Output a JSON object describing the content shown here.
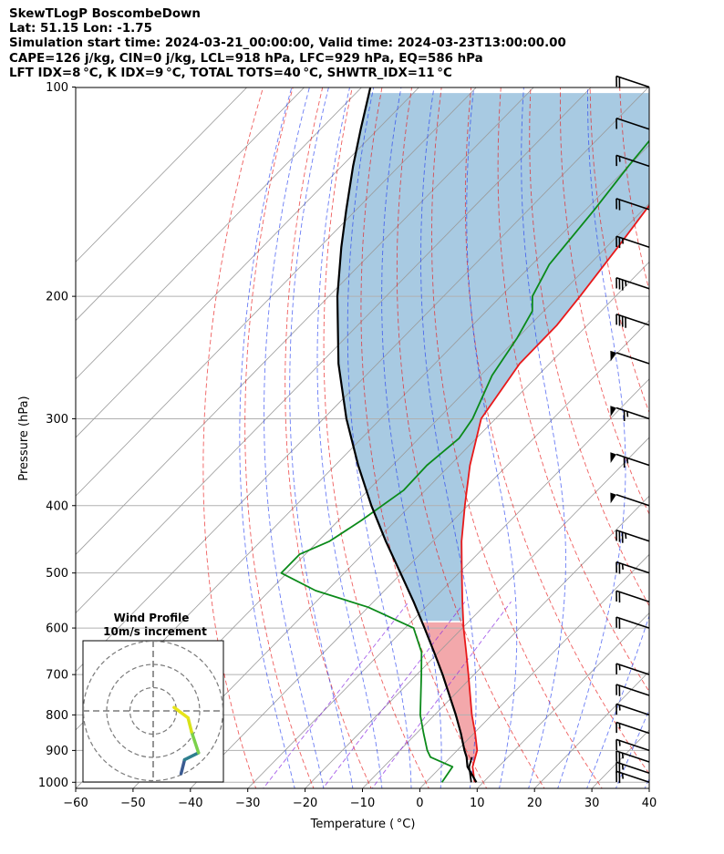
{
  "header": {
    "line1": "SkewTLogP BoscombeDown",
    "line2": "Lat: 51.15   Lon: -1.75",
    "line3": "Simulation start time: 2024-03-21_00:00:00, Valid time: 2024-03-23T13:00:00.00",
    "line4": "CAPE=126 j/kg, CIN=0 j/kg, LCL=918 hPa, LFC=929 hPa, EQ=586 hPa",
    "line5": "LFT IDX=8 °C, K IDX=9 °C, TOTAL TOTS=40 °C, SHWTR_IDX=11 °C"
  },
  "hodograph": {
    "title": "Wind Profile",
    "subtitle": "10m/s increment"
  },
  "colors": {
    "temperature": "#e8191a",
    "dewpoint": "#0b8a1a",
    "parcel": "#000000",
    "cape_fill": "#a3c7e0",
    "cin_fill": "#f2a3a6",
    "dry_adiabat": "#e8191a",
    "moist_adiabat": "#1a35f0",
    "mixing_ratio": "#8a2be2",
    "isotherm": "#9a9a9a"
  },
  "chart_data": {
    "type": "line",
    "xlabel": "Temperature ( °C)",
    "ylabel": "Pressure (hPa)",
    "x_ticks": [
      -60,
      -50,
      -40,
      -30,
      -20,
      -10,
      0,
      10,
      20,
      30,
      40
    ],
    "y_ticks": [
      100,
      200,
      300,
      400,
      500,
      600,
      700,
      800,
      900,
      1000
    ],
    "xlim": [
      -60,
      40
    ],
    "ylim": [
      1050,
      100
    ],
    "y_scale": "log",
    "skew": true,
    "grid": true,
    "series": [
      {
        "key": "temperature",
        "p": [
          1000,
          950,
          900,
          850,
          800,
          700,
          650,
          600,
          550,
          500,
          450,
          400,
          350,
          300,
          250,
          220,
          200,
          170,
          150,
          130,
          115,
          100
        ],
        "t": [
          8.5,
          5.5,
          3.5,
          0.2,
          -3.5,
          -11.0,
          -15.2,
          -19.8,
          -24.5,
          -29.5,
          -35.0,
          -40.5,
          -46.5,
          -52.5,
          -55.2,
          -55.3,
          -56.2,
          -58.0,
          -59.5,
          -61.0,
          -62.2,
          -63.2
        ]
      },
      {
        "key": "dewpoint",
        "p": [
          1000,
          950,
          920,
          900,
          850,
          800,
          700,
          650,
          600,
          560,
          530,
          500,
          470,
          450,
          420,
          380,
          350,
          320,
          300,
          260,
          230,
          210,
          200,
          180,
          150,
          130,
          115,
          100
        ],
        "t": [
          2.8,
          2.0,
          -3.5,
          -5.2,
          -8.8,
          -12.5,
          -19.2,
          -23.0,
          -28.5,
          -40.0,
          -52.0,
          -61.0,
          -61.0,
          -58.0,
          -56.0,
          -53.8,
          -54.0,
          -53.0,
          -54.0,
          -58.0,
          -60.0,
          -62.0,
          -64.5,
          -67.0,
          -68.5,
          -70.0,
          -71.0,
          -72.0
        ]
      },
      {
        "key": "parcel",
        "p": [
          1000,
          950,
          920,
          900,
          850,
          800,
          700,
          650,
          600,
          550,
          500,
          450,
          400,
          350,
          300,
          250,
          200,
          170,
          150,
          130,
          115,
          100
        ],
        "t": [
          8.8,
          4.6,
          2.8,
          1.3,
          -2.3,
          -6.3,
          -15.5,
          -20.8,
          -26.6,
          -33.0,
          -40.2,
          -48.2,
          -56.8,
          -66.0,
          -76.0,
          -86.8,
          -98.5,
          -106.2,
          -111.8,
          -118.0,
          -123.0,
          -128.5
        ]
      }
    ],
    "cape_range_hpa": [
      586,
      100
    ],
    "cin_range_hpa": [
      929,
      586
    ],
    "wind_barbs": [
      {
        "p": 1000,
        "barb": "10-10-5"
      },
      {
        "p": 970,
        "barb": "10-10-5"
      },
      {
        "p": 935,
        "barb": "10-10-5"
      },
      {
        "p": 900,
        "barb": "10-5"
      },
      {
        "p": 850,
        "barb": "10-5"
      },
      {
        "p": 800,
        "barb": "10-5"
      },
      {
        "p": 750,
        "barb": "10-10"
      },
      {
        "p": 700,
        "barb": "10-5"
      },
      {
        "p": 600,
        "barb": "10-10"
      },
      {
        "p": 550,
        "barb": "10-10"
      },
      {
        "p": 500,
        "barb": "10-10-5"
      },
      {
        "p": 450,
        "barb": "10-10-10-5"
      },
      {
        "p": 400,
        "barb": "50"
      },
      {
        "p": 350,
        "barb": "50-10-5"
      },
      {
        "p": 300,
        "barb": "50-10-5"
      },
      {
        "p": 250,
        "barb": "50"
      },
      {
        "p": 220,
        "barb": "10-10-10-10"
      },
      {
        "p": 195,
        "barb": "10-10-10-5"
      },
      {
        "p": 170,
        "barb": "10-10-5"
      },
      {
        "p": 150,
        "barb": "10-10"
      },
      {
        "p": 130,
        "barb": "10-5"
      },
      {
        "p": 115,
        "barb": "10"
      },
      {
        "p": 100,
        "barb": "10-10"
      }
    ],
    "hodograph_trace": [
      [
        4,
        -9
      ],
      [
        4.5,
        -7
      ],
      [
        6.5,
        -6
      ],
      [
        5.5,
        -3
      ],
      [
        5,
        -1
      ],
      [
        3,
        0.5
      ]
    ]
  }
}
